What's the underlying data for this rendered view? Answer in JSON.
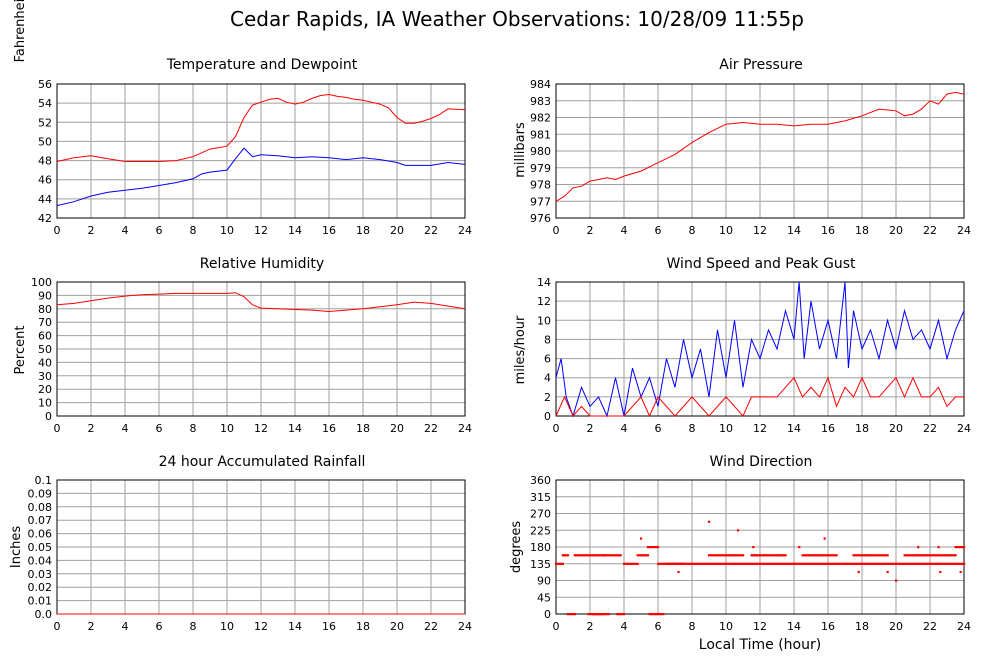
{
  "page": {
    "title": "Cedar Rapids, IA Weather Observations: 10/28/09 11:55p",
    "xlabel": "Local Time (hour)"
  },
  "chart_data": [
    {
      "id": "temp",
      "type": "line",
      "title": "Temperature and Dewpoint",
      "ylabel": "Fahrenheit",
      "xlim": [
        0,
        24
      ],
      "ylim": [
        42,
        56
      ],
      "xticks": [
        0,
        2,
        4,
        6,
        8,
        10,
        12,
        14,
        16,
        18,
        20,
        22,
        24
      ],
      "yticks": [
        42,
        44,
        46,
        48,
        50,
        52,
        54,
        56
      ],
      "grid": true,
      "series": [
        {
          "color": "#ff0000",
          "x": [
            0,
            1,
            2,
            3,
            4,
            5,
            6,
            7,
            8,
            9,
            10,
            10.5,
            11,
            11.5,
            12,
            12.5,
            13,
            13.5,
            14,
            14.5,
            15,
            15.5,
            16,
            16.5,
            17,
            17.5,
            18,
            18.5,
            19,
            19.5,
            20,
            20.5,
            21,
            21.5,
            22,
            22.5,
            23,
            24
          ],
          "y": [
            47.9,
            48.3,
            48.5,
            48.2,
            47.9,
            47.9,
            47.9,
            48,
            48.4,
            49.2,
            49.5,
            50.5,
            52.5,
            53.8,
            54.1,
            54.4,
            54.5,
            54.1,
            53.9,
            54.1,
            54.5,
            54.8,
            54.9,
            54.7,
            54.6,
            54.4,
            54.3,
            54.1,
            53.9,
            53.5,
            52.5,
            51.9,
            51.9,
            52.1,
            52.4,
            52.8,
            53.4,
            53.3
          ]
        },
        {
          "color": "#0000ff",
          "x": [
            0,
            1,
            2,
            3,
            4,
            5,
            6,
            7,
            8,
            8.5,
            9,
            10,
            10.5,
            11,
            11.5,
            12,
            13,
            14,
            15,
            16,
            17,
            18,
            19,
            20,
            20.5,
            21,
            22,
            23,
            24
          ],
          "y": [
            43.3,
            43.7,
            44.3,
            44.7,
            44.9,
            45.1,
            45.4,
            45.7,
            46.1,
            46.6,
            46.8,
            47,
            48.2,
            49.3,
            48.4,
            48.6,
            48.5,
            48.3,
            48.4,
            48.3,
            48.1,
            48.3,
            48.1,
            47.8,
            47.5,
            47.5,
            47.5,
            47.8,
            47.6
          ]
        }
      ]
    },
    {
      "id": "pressure",
      "type": "line",
      "title": "Air Pressure",
      "ylabel": "millibars",
      "xlim": [
        0,
        24
      ],
      "ylim": [
        976,
        984
      ],
      "xticks": [
        0,
        2,
        4,
        6,
        8,
        10,
        12,
        14,
        16,
        18,
        20,
        22,
        24
      ],
      "yticks": [
        976,
        977,
        978,
        979,
        980,
        981,
        982,
        983,
        984
      ],
      "grid": true,
      "series": [
        {
          "color": "#ff0000",
          "x": [
            0,
            0.5,
            1,
            1.5,
            2,
            2.5,
            3,
            3.5,
            4,
            5,
            6,
            7,
            8,
            9,
            10,
            11,
            12,
            13,
            14,
            15,
            16,
            17,
            18,
            19,
            20,
            20.5,
            21,
            21.5,
            22,
            22.5,
            23,
            23.5,
            24
          ],
          "y": [
            977,
            977.3,
            977.8,
            977.9,
            978.2,
            978.3,
            978.4,
            978.3,
            978.5,
            978.8,
            979.3,
            979.8,
            980.5,
            981.1,
            981.6,
            981.7,
            981.6,
            981.6,
            981.5,
            981.6,
            981.6,
            981.8,
            982.1,
            982.5,
            982.4,
            982.1,
            982.2,
            982.5,
            983,
            982.8,
            983.4,
            983.5,
            983.4
          ]
        }
      ]
    },
    {
      "id": "humidity",
      "type": "line",
      "title": "Relative Humidity",
      "ylabel": "Percent",
      "xlim": [
        0,
        24
      ],
      "ylim": [
        0,
        100
      ],
      "xticks": [
        0,
        2,
        4,
        6,
        8,
        10,
        12,
        14,
        16,
        18,
        20,
        22,
        24
      ],
      "yticks": [
        0,
        10,
        20,
        30,
        40,
        50,
        60,
        70,
        80,
        90,
        100
      ],
      "grid": true,
      "series": [
        {
          "color": "#ff0000",
          "x": [
            0,
            1,
            2,
            3,
            4,
            5,
            6,
            7,
            8,
            9,
            10,
            10.5,
            11,
            11.5,
            12,
            13,
            14,
            15,
            16,
            17,
            18,
            19,
            20,
            21,
            22,
            23,
            24
          ],
          "y": [
            83,
            84,
            86,
            88,
            89.5,
            90.5,
            91,
            91.5,
            91.5,
            91.5,
            91.5,
            92,
            89,
            83,
            80.5,
            80,
            79.5,
            79,
            78,
            79,
            80,
            81.5,
            83,
            85,
            84,
            82,
            80
          ]
        }
      ]
    },
    {
      "id": "wind",
      "type": "line",
      "title": "Wind Speed and Peak Gust",
      "ylabel": "miles/hour",
      "xlim": [
        0,
        24
      ],
      "ylim": [
        0,
        14
      ],
      "xticks": [
        0,
        2,
        4,
        6,
        8,
        10,
        12,
        14,
        16,
        18,
        20,
        22,
        24
      ],
      "yticks": [
        0,
        2,
        4,
        6,
        8,
        10,
        12,
        14
      ],
      "grid": true,
      "series": [
        {
          "color": "#0000ff",
          "x": [
            0,
            0.3,
            0.6,
            1,
            1.5,
            2,
            2.5,
            3,
            3.5,
            4,
            4.5,
            5,
            5.5,
            6,
            6.5,
            7,
            7.5,
            8,
            8.5,
            9,
            9.5,
            10,
            10.5,
            11,
            11.5,
            12,
            12.5,
            13,
            13.5,
            14,
            14.3,
            14.6,
            15,
            15.5,
            16,
            16.5,
            17,
            17.2,
            17.5,
            18,
            18.5,
            19,
            19.5,
            20,
            20.5,
            21,
            21.5,
            22,
            22.5,
            23,
            23.5,
            24
          ],
          "y": [
            4,
            6,
            2,
            0,
            3,
            1,
            2,
            0,
            4,
            0,
            5,
            2,
            4,
            1,
            6,
            3,
            8,
            4,
            7,
            2,
            9,
            4,
            10,
            3,
            8,
            6,
            9,
            7,
            11,
            8,
            14,
            6,
            12,
            7,
            10,
            6,
            14,
            5,
            11,
            7,
            9,
            6,
            10,
            7,
            11,
            8,
            9,
            7,
            10,
            6,
            9,
            11
          ]
        },
        {
          "color": "#ff0000",
          "x": [
            0,
            0.5,
            1,
            1.5,
            2,
            3,
            4,
            5,
            5.5,
            6,
            7,
            8,
            9,
            10,
            11,
            11.5,
            12,
            13,
            14,
            14.5,
            15,
            15.5,
            16,
            16.5,
            17,
            17.5,
            18,
            18.5,
            19,
            19.5,
            20,
            20.5,
            21,
            21.5,
            22,
            22.5,
            23,
            23.5,
            24
          ],
          "y": [
            0,
            2,
            0,
            1,
            0,
            0,
            0,
            2,
            0,
            2,
            0,
            2,
            0,
            2,
            0,
            2,
            2,
            2,
            4,
            2,
            3,
            2,
            4,
            1,
            3,
            2,
            4,
            2,
            2,
            3,
            4,
            2,
            4,
            2,
            2,
            3,
            1,
            2,
            2
          ]
        }
      ]
    },
    {
      "id": "rain",
      "type": "line",
      "title": "24 hour Accumulated Rainfall",
      "ylabel": "Inches",
      "xlim": [
        0,
        24
      ],
      "ylim": [
        0,
        0.1
      ],
      "xticks": [
        0,
        2,
        4,
        6,
        8,
        10,
        12,
        14,
        16,
        18,
        20,
        22,
        24
      ],
      "yticks": [
        "0.0",
        "0.01",
        "0.02",
        "0.03",
        "0.04",
        "0.05",
        "0.06",
        "0.07",
        "0.08",
        "0.09",
        "0.1"
      ],
      "grid": true,
      "series": [
        {
          "color": "#ff0000",
          "x": [
            0,
            24
          ],
          "y": [
            0,
            0
          ]
        }
      ]
    },
    {
      "id": "direction",
      "type": "scatter",
      "title": "Wind Direction",
      "ylabel": "degrees",
      "xlabel": "Local Time (hour)",
      "xlim": [
        0,
        24
      ],
      "ylim": [
        0,
        360
      ],
      "xticks": [
        0,
        2,
        4,
        6,
        8,
        10,
        12,
        14,
        16,
        18,
        20,
        22,
        24
      ],
      "yticks": [
        0,
        45,
        90,
        135,
        180,
        225,
        270,
        315,
        360
      ],
      "grid": true,
      "series": [
        {
          "color": "#ff0000",
          "segments": [
            [
              0,
              0.4,
              135
            ],
            [
              0.4,
              0.7,
              158
            ],
            [
              0.7,
              1.1,
              0
            ],
            [
              1.1,
              2.8,
              158
            ],
            [
              1.9,
              2.7,
              0
            ],
            [
              2.2,
              3.1,
              0
            ],
            [
              2.8,
              3.8,
              158
            ],
            [
              3.6,
              4.0,
              0
            ],
            [
              4.0,
              4.8,
              135
            ],
            [
              4.8,
              5.4,
              158
            ],
            [
              5.4,
              6.0,
              180
            ],
            [
              6.0,
              10.5,
              135
            ],
            [
              10.5,
              14.0,
              135
            ],
            [
              14.0,
              17.0,
              135
            ],
            [
              17.0,
              20.0,
              135
            ],
            [
              20.0,
              22.5,
              135
            ],
            [
              22.5,
              24,
              135
            ],
            [
              6.5,
              7.5,
              135
            ],
            [
              9.0,
              11.0,
              158
            ],
            [
              11.5,
              13.5,
              158
            ],
            [
              14.5,
              16.5,
              158
            ],
            [
              17.5,
              19.5,
              158
            ],
            [
              20.5,
              23.5,
              158
            ],
            [
              23.5,
              24,
              180
            ],
            [
              5.5,
              6.3,
              0
            ]
          ],
          "points": [
            [
              0.5,
              158
            ],
            [
              5,
              203
            ],
            [
              7.2,
              113
            ],
            [
              9,
              248
            ],
            [
              10.7,
              225
            ],
            [
              11.6,
              180
            ],
            [
              14.3,
              180
            ],
            [
              15.8,
              203
            ],
            [
              17.8,
              113
            ],
            [
              19.5,
              113
            ],
            [
              20,
              90
            ],
            [
              21.3,
              180
            ],
            [
              22.5,
              180
            ],
            [
              22.6,
              113
            ],
            [
              23.8,
              113
            ]
          ]
        }
      ]
    }
  ]
}
